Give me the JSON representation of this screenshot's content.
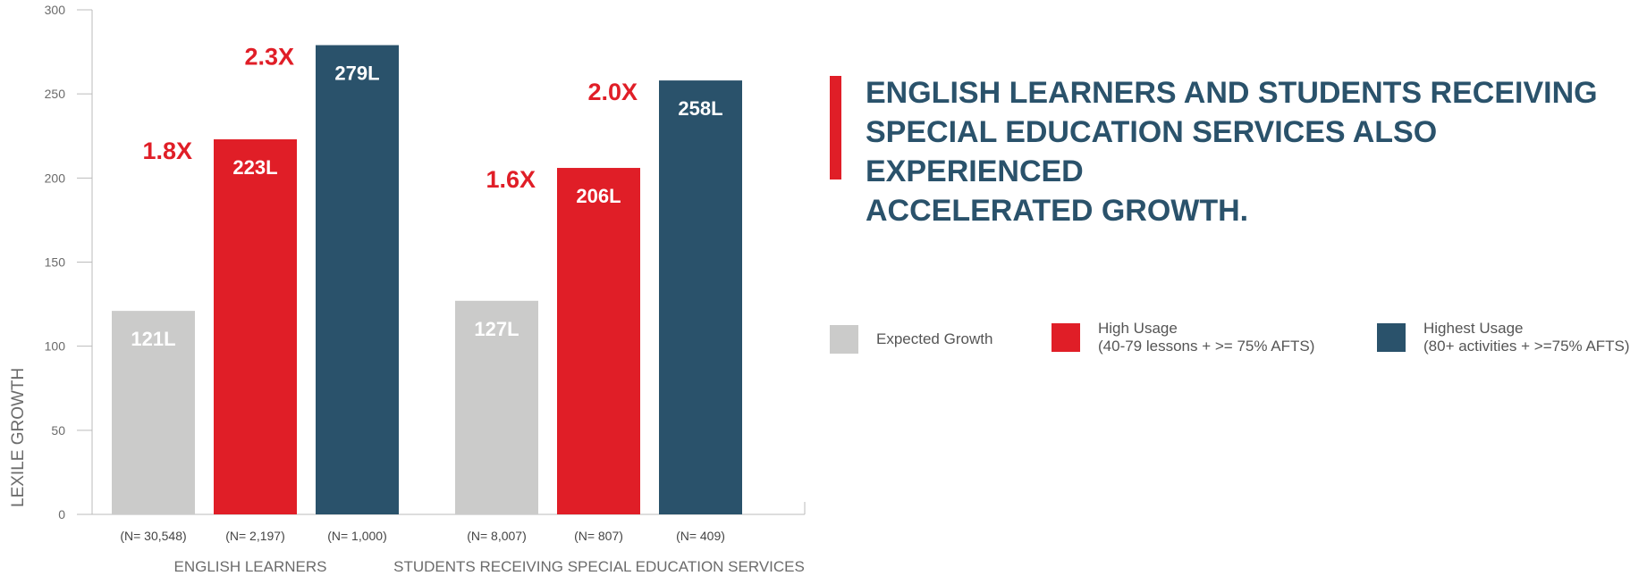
{
  "headline": "ENGLISH LEARNERS AND STUDENTS RECEIVING\nSPECIAL EDUCATION SERVICES ALSO EXPERIENCED\nACCELERATED GROWTH.",
  "colors": {
    "expected": "#cbcbca",
    "high": "#e01e27",
    "highest": "#2a526b",
    "multiplier": "#e01e27",
    "axis_text": "#6b6b6b"
  },
  "legend": [
    {
      "label": "Expected Growth",
      "swatch_color": "#cbcbca"
    },
    {
      "label": "High Usage\n(40-79 lessons + >= 75% AFTS)",
      "swatch_color": "#e01e27"
    },
    {
      "label": "Highest Usage\n(80+ activities + >=75% AFTS)",
      "swatch_color": "#2a526b"
    }
  ],
  "chart_data": {
    "type": "bar",
    "title": "",
    "xlabel": "",
    "ylabel": "LEXILE GROWTH",
    "ylim": [
      0,
      300
    ],
    "yticks": [
      0,
      50,
      100,
      150,
      200,
      250,
      300
    ],
    "grid": false,
    "legend_position": "right",
    "groups": [
      {
        "label": "ENGLISH LEARNERS",
        "bars": [
          {
            "series": "Expected Growth",
            "value": 121,
            "label": "121L",
            "n_label": "(N= 30,548)",
            "multiplier": ""
          },
          {
            "series": "High Usage",
            "value": 223,
            "label": "223L",
            "n_label": "(N= 2,197)",
            "multiplier": "1.8X"
          },
          {
            "series": "Highest Usage",
            "value": 279,
            "label": "279L",
            "n_label": "(N= 1,000)",
            "multiplier": "2.3X"
          }
        ]
      },
      {
        "label": "STUDENTS RECEIVING SPECIAL EDUCATION SERVICES",
        "bars": [
          {
            "series": "Expected Growth",
            "value": 127,
            "label": "127L",
            "n_label": "(N= 8,007)",
            "multiplier": ""
          },
          {
            "series": "High Usage",
            "value": 206,
            "label": "206L",
            "n_label": "(N= 807)",
            "multiplier": "1.6X"
          },
          {
            "series": "Highest Usage",
            "value": 258,
            "label": "258L",
            "n_label": "(N= 409)",
            "multiplier": "2.0X"
          }
        ]
      }
    ]
  }
}
